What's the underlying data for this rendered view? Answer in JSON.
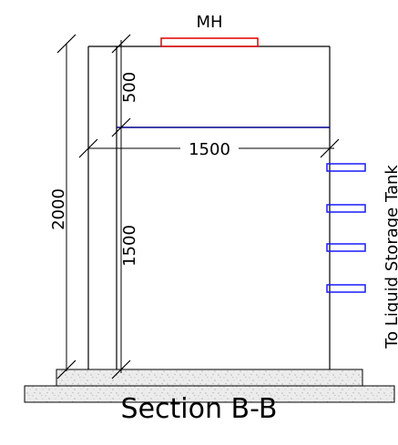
{
  "labels": {
    "manhole": "MH",
    "overflow_dim": "500",
    "width_dim": "1500",
    "total_height_dim": "2000",
    "liquid_height_dim": "1500",
    "outlet_label": "To Liquid Storage Tank"
  },
  "title": "Section B-B",
  "colors": {
    "outline": "#000000",
    "manhole": "#e00000",
    "water_level": "#00008b",
    "outlets": "#1a1aff",
    "concrete_fill": "#ececec",
    "stipple": "#9a9a9a"
  }
}
